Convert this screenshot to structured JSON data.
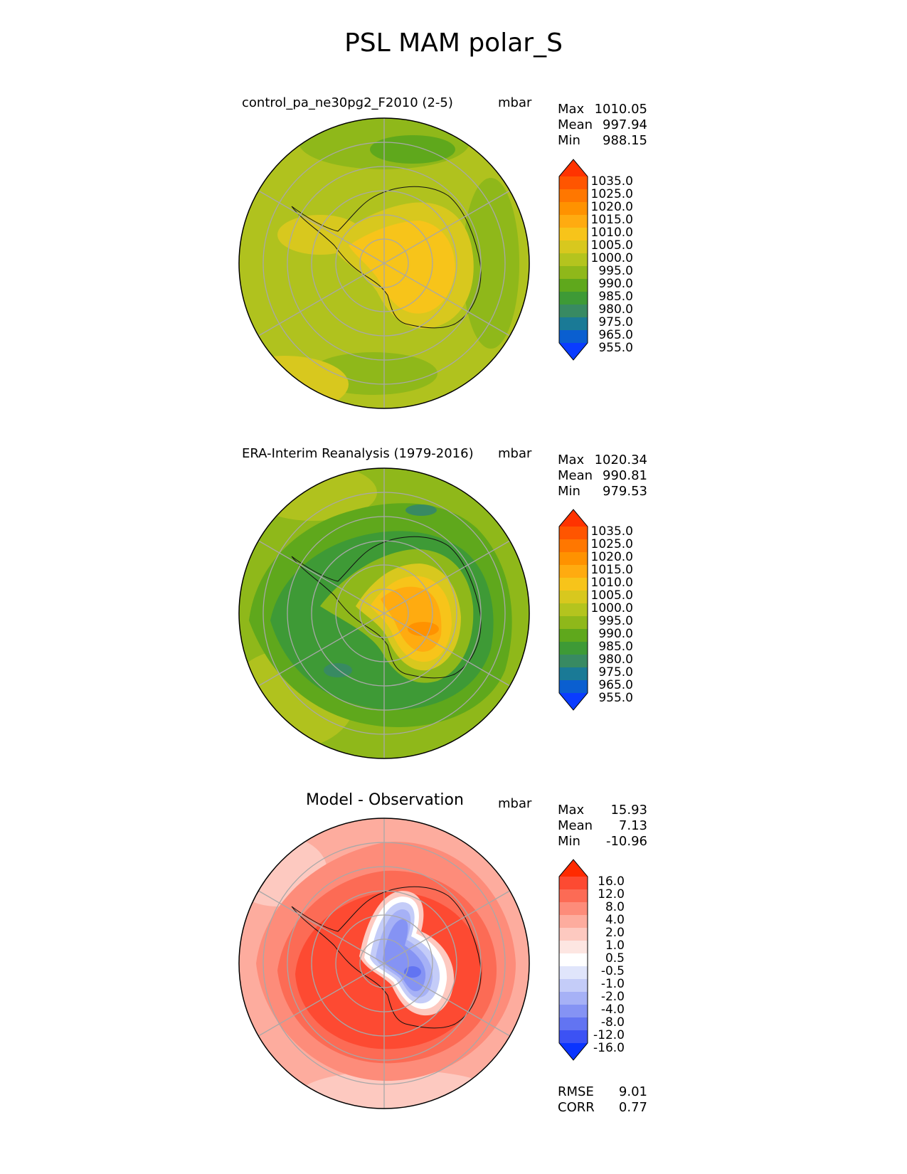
{
  "title": "PSL MAM polar_S",
  "panels": [
    {
      "id": "model",
      "title": "control_pa_ne30pg2_F2010 (2-5)",
      "title_style": "small",
      "units": "mbar",
      "stats": [
        {
          "label": "Max",
          "value": "1010.05"
        },
        {
          "label": "Mean",
          "value": "997.94"
        },
        {
          "label": "Min",
          "value": "988.15"
        }
      ],
      "colorbar": "abs"
    },
    {
      "id": "obs",
      "title": "ERA-Interim Reanalysis (1979-2016)",
      "title_style": "small",
      "units": "mbar",
      "stats": [
        {
          "label": "Max",
          "value": "1020.34"
        },
        {
          "label": "Mean",
          "value": "990.81"
        },
        {
          "label": "Min",
          "value": "979.53"
        }
      ],
      "colorbar": "abs"
    },
    {
      "id": "diff",
      "title": "Model - Observation",
      "title_style": "large",
      "units": "mbar",
      "stats": [
        {
          "label": "Max",
          "value": "15.93"
        },
        {
          "label": "Mean",
          "value": "7.13"
        },
        {
          "label": "Min",
          "value": "-10.96"
        }
      ],
      "colorbar": "diff",
      "footer": [
        {
          "label": "RMSE",
          "value": "9.01"
        },
        {
          "label": "CORR",
          "value": "0.77"
        }
      ]
    }
  ],
  "colorbars": {
    "abs": {
      "labels": [
        "1035.0",
        "1025.0",
        "1020.0",
        "1015.0",
        "1010.0",
        "1005.0",
        "1000.0",
        "995.0",
        "990.0",
        "985.0",
        "980.0",
        "975.0",
        "965.0",
        "955.0"
      ],
      "colors_top_to_bottom": [
        "#ff3300",
        "#ff5500",
        "#ff7700",
        "#ff9200",
        "#ffab10",
        "#f7c41a",
        "#d8c81e",
        "#b4c41e",
        "#8fb81a",
        "#5fa81c",
        "#3e9a36",
        "#388a62",
        "#1a7a96",
        "#0a5fd0",
        "#0a3cff"
      ]
    },
    "diff": {
      "labels": [
        "16.0",
        "12.0",
        "8.0",
        "4.0",
        "2.0",
        "1.0",
        "0.5",
        "-0.5",
        "-1.0",
        "-2.0",
        "-4.0",
        "-8.0",
        "-12.0",
        "-16.0"
      ],
      "colors_top_to_bottom": [
        "#ff2a00",
        "#fd4a32",
        "#fc6b55",
        "#fd8c7a",
        "#fdac9e",
        "#fdc9c0",
        "#fde6e2",
        "#ffffff",
        "#e0e5fb",
        "#c4ccf8",
        "#a6b1f6",
        "#8593f4",
        "#6274f2",
        "#3c52f4",
        "#0a34ff"
      ]
    }
  },
  "chart_data": [
    {
      "type": "heatmap",
      "title": "control_pa_ne30pg2_F2010 (2-5)",
      "projection": "south polar stereographic",
      "variable": "PSL",
      "units": "mbar",
      "max": 1010.05,
      "mean": 997.94,
      "min": 988.15,
      "levels": [
        955,
        965,
        975,
        980,
        985,
        990,
        995,
        1000,
        1005,
        1010,
        1015,
        1020,
        1025,
        1035
      ]
    },
    {
      "type": "heatmap",
      "title": "ERA-Interim Reanalysis (1979-2016)",
      "projection": "south polar stereographic",
      "variable": "PSL",
      "units": "mbar",
      "max": 1020.34,
      "mean": 990.81,
      "min": 979.53,
      "levels": [
        955,
        965,
        975,
        980,
        985,
        990,
        995,
        1000,
        1005,
        1010,
        1015,
        1020,
        1025,
        1035
      ]
    },
    {
      "type": "heatmap",
      "title": "Model - Observation",
      "projection": "south polar stereographic",
      "variable": "PSL difference",
      "units": "mbar",
      "max": 15.93,
      "mean": 7.13,
      "min": -10.96,
      "rmse": 9.01,
      "corr": 0.77,
      "levels": [
        -16,
        -12,
        -8,
        -4,
        -2,
        -1,
        -0.5,
        0.5,
        1,
        2,
        4,
        8,
        12,
        16
      ]
    }
  ]
}
